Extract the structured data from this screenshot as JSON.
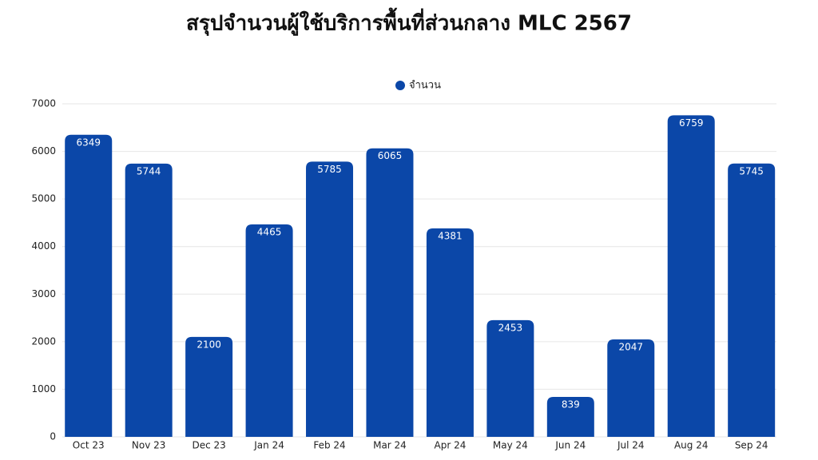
{
  "chart_data": {
    "type": "bar",
    "title": "สรุปจำนวนผู้ใช้บริการพื้นที่ส่วนกลาง MLC 2567",
    "categories": [
      "Oct 23",
      "Nov 23",
      "Dec 23",
      "Jan 24",
      "Feb 24",
      "Mar 24",
      "Apr 24",
      "May 24",
      "Jun 24",
      "Jul 24",
      "Aug 24",
      "Sep 24"
    ],
    "series": [
      {
        "name": "จำนวน",
        "color": "#0b47a8",
        "values": [
          6349,
          5744,
          2100,
          4465,
          5785,
          6065,
          4381,
          2453,
          839,
          2047,
          6759,
          5745
        ]
      }
    ],
    "ylim": [
      0,
      7000
    ],
    "yticks": [
      0,
      1000,
      2000,
      3000,
      4000,
      5000,
      6000,
      7000
    ],
    "grid": true,
    "legend": "top"
  }
}
